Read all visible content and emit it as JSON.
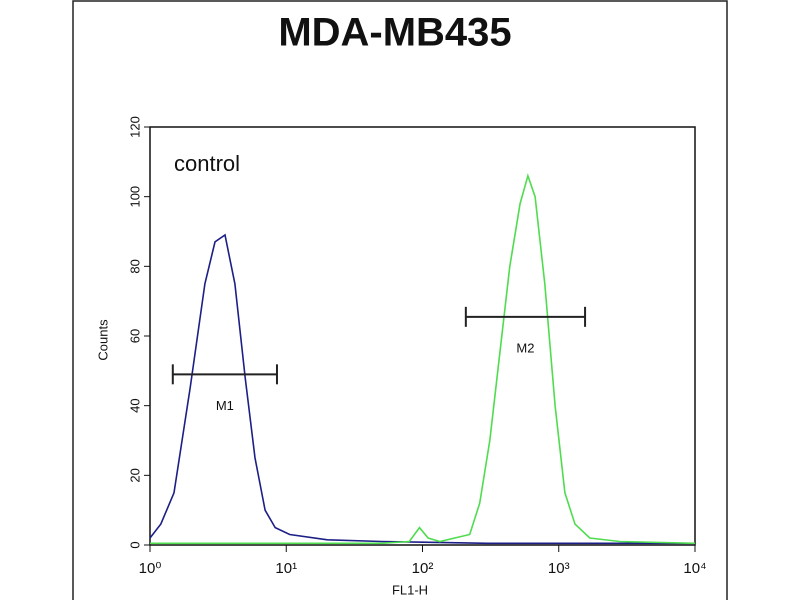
{
  "chart_data": {
    "type": "line",
    "title": "MDA-MB435",
    "xlabel": "FL1-H",
    "ylabel": "Counts",
    "xscale": "log",
    "xlim": [
      1,
      10000
    ],
    "ylim": [
      0,
      120
    ],
    "xticks": [
      {
        "value": 1,
        "label": "10⁰"
      },
      {
        "value": 10,
        "label": "10¹"
      },
      {
        "value": 100,
        "label": "10²"
      },
      {
        "value": 1000,
        "label": "10³"
      },
      {
        "value": 10000,
        "label": "10⁴"
      }
    ],
    "yticks": [
      0,
      20,
      40,
      60,
      80,
      100,
      120
    ],
    "annotations": [
      {
        "text": "control",
        "x": 1.5,
        "y": 109
      }
    ],
    "markers": [
      {
        "label": "M1",
        "xrange": [
          1.47,
          8.55
        ],
        "y": 49
      },
      {
        "label": "M2",
        "xrange": [
          208,
          1560
        ],
        "y": 65.5
      }
    ],
    "series": [
      {
        "color": "#1c1f86",
        "x": [
          1,
          1.2,
          1.5,
          1.97,
          2.53,
          3.0,
          3.55,
          4.2,
          5.0,
          5.9,
          7.0,
          8.3,
          10.6,
          20,
          50,
          100,
          300,
          1000,
          10000
        ],
        "values": [
          2,
          6,
          15,
          45,
          75,
          87,
          89,
          75,
          48,
          25,
          10,
          5,
          3,
          1.5,
          1,
          0.8,
          0.5,
          0.5,
          0.5
        ]
      },
      {
        "color": "#4fdc4f",
        "x": [
          1,
          10,
          50,
          80,
          95,
          110,
          134,
          222,
          263,
          312,
          369,
          437,
          520,
          594,
          670,
          790,
          940,
          1110,
          1315,
          1690,
          2800,
          10000
        ],
        "values": [
          0.5,
          0.5,
          0.5,
          1,
          5,
          2,
          1,
          3,
          12,
          30,
          55,
          80,
          98,
          106,
          100,
          75,
          40,
          15,
          6,
          2,
          1,
          0.5
        ]
      }
    ]
  }
}
